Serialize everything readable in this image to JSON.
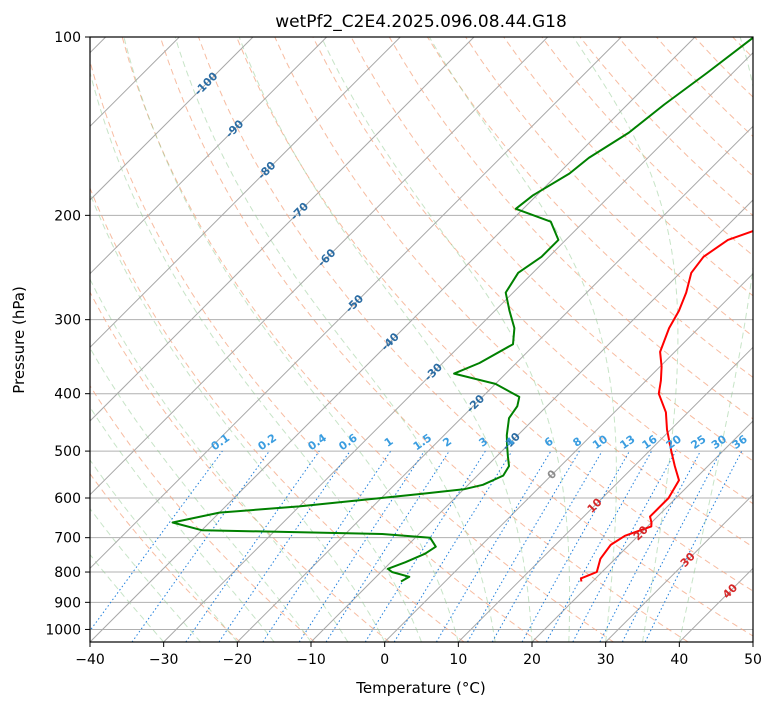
{
  "chart_data": {
    "type": "skew-t",
    "title": "wetPf2_C2E4.2025.096.08.44.G18",
    "xlabel": "Temperature (°C)",
    "ylabel": "Pressure (hPa)",
    "xlim": [
      -40,
      50
    ],
    "ylim": [
      1050,
      100
    ],
    "x_ticks": [
      -40,
      -30,
      -20,
      -10,
      0,
      10,
      20,
      30,
      40,
      50
    ],
    "x_tick_labels": [
      "−40",
      "−30",
      "−20",
      "−10",
      "0",
      "10",
      "20",
      "30",
      "40",
      "50"
    ],
    "y_ticks": [
      100,
      200,
      300,
      400,
      500,
      600,
      700,
      800,
      900,
      1000
    ],
    "y_tick_labels": [
      "100",
      "200",
      "300",
      "400",
      "500",
      "600",
      "700",
      "800",
      "900",
      "1000"
    ],
    "y_scale": "log",
    "grid": true,
    "isotherm_labels": [
      "-100",
      "-90",
      "-80",
      "-70",
      "-60",
      "-50",
      "-40",
      "-30",
      "-20",
      "-10",
      "0",
      "10",
      "20",
      "30",
      "40"
    ],
    "mixing_ratio_labels": [
      "0.1",
      "0.2",
      "0.4",
      "0.6",
      "1",
      "1.5",
      "2",
      "3",
      "4",
      "6",
      "8",
      "10",
      "13",
      "16",
      "20",
      "25",
      "30",
      "36"
    ],
    "mixing_ratio_values": [
      0.1,
      0.2,
      0.4,
      0.6,
      1,
      1.5,
      2,
      3,
      4,
      6,
      8,
      10,
      13,
      16,
      20,
      25,
      30,
      36
    ],
    "series": [
      {
        "color": "#ff0000",
        "points": [
          [
            830,
            18.5
          ],
          [
            820,
            18.0
          ],
          [
            800,
            19.3
          ],
          [
            760,
            18.0
          ],
          [
            720,
            17.5
          ],
          [
            695,
            18.2
          ],
          [
            670,
            20.5
          ],
          [
            660,
            20.0
          ],
          [
            645,
            19.0
          ],
          [
            625,
            19.0
          ],
          [
            600,
            19.0
          ],
          [
            560,
            18.0
          ],
          [
            530,
            15.5
          ],
          [
            500,
            13.0
          ],
          [
            460,
            9.5
          ],
          [
            430,
            7.0
          ],
          [
            400,
            3.5
          ],
          [
            380,
            2.0
          ],
          [
            360,
            0.2
          ],
          [
            340,
            -2.0
          ],
          [
            310,
            -4.0
          ],
          [
            290,
            -5.0
          ],
          [
            270,
            -6.5
          ],
          [
            250,
            -8.5
          ],
          [
            235,
            -9.0
          ],
          [
            220,
            -8.0
          ],
          [
            210,
            -5.0
          ],
          [
            200,
            -3.0
          ],
          [
            190,
            -3.0
          ],
          [
            175,
            -4.5
          ],
          [
            150,
            -7.5
          ],
          [
            130,
            -11.0
          ],
          [
            115,
            -14.0
          ],
          [
            100,
            -17.5
          ]
        ]
      },
      {
        "color": "#008000",
        "points": [
          [
            830,
            -6.0
          ],
          [
            815,
            -5.5
          ],
          [
            800,
            -8.5
          ],
          [
            790,
            -9.5
          ],
          [
            770,
            -8.0
          ],
          [
            745,
            -6.5
          ],
          [
            725,
            -6.0
          ],
          [
            700,
            -8.0
          ],
          [
            690,
            -15.0
          ],
          [
            680,
            -40.0
          ],
          [
            660,
            -45.0
          ],
          [
            635,
            -40.0
          ],
          [
            620,
            -30.0
          ],
          [
            600,
            -20.0
          ],
          [
            590,
            -15.0
          ],
          [
            580,
            -10.0
          ],
          [
            570,
            -8.0
          ],
          [
            550,
            -6.5
          ],
          [
            530,
            -7.0
          ],
          [
            510,
            -8.5
          ],
          [
            490,
            -10.0
          ],
          [
            470,
            -11.5
          ],
          [
            440,
            -13.5
          ],
          [
            420,
            -14.0
          ],
          [
            405,
            -15.0
          ],
          [
            385,
            -20.0
          ],
          [
            370,
            -27.0
          ],
          [
            355,
            -25.0
          ],
          [
            330,
            -23.0
          ],
          [
            310,
            -25.0
          ],
          [
            290,
            -28.0
          ],
          [
            270,
            -31.0
          ],
          [
            250,
            -32.0
          ],
          [
            235,
            -31.0
          ],
          [
            220,
            -31.0
          ],
          [
            205,
            -34.5
          ],
          [
            195,
            -41.0
          ],
          [
            185,
            -40.5
          ],
          [
            170,
            -38.5
          ],
          [
            160,
            -38.0
          ],
          [
            145,
            -36.0
          ],
          [
            130,
            -35.0
          ],
          [
            115,
            -33.5
          ],
          [
            100,
            -32.0
          ]
        ]
      }
    ]
  }
}
